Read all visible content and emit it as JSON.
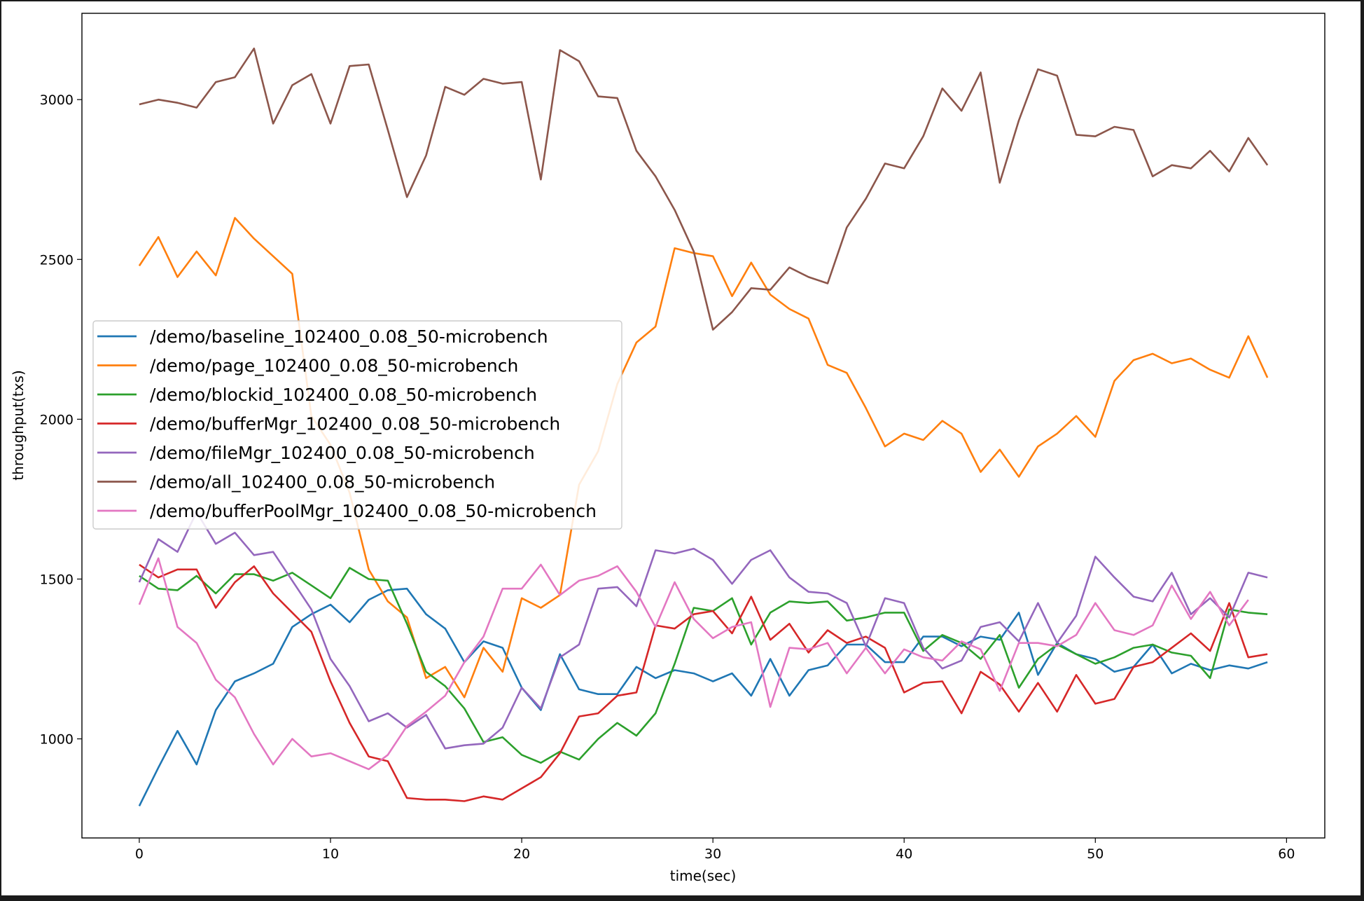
{
  "chart_data": {
    "type": "line",
    "xlabel": "time(sec)",
    "ylabel": "throughput(txs)",
    "xlim": [
      -3,
      62
    ],
    "ylim": [
      690,
      3270
    ],
    "xticks": [
      0,
      10,
      20,
      30,
      40,
      50,
      60
    ],
    "yticks": [
      1000,
      1500,
      2000,
      2500,
      3000
    ],
    "grid": false,
    "legend_position": "center-left",
    "x": [
      0,
      1,
      2,
      3,
      4,
      5,
      6,
      7,
      8,
      9,
      10,
      11,
      12,
      13,
      14,
      15,
      16,
      17,
      18,
      19,
      20,
      21,
      22,
      23,
      24,
      25,
      26,
      27,
      28,
      29,
      30,
      31,
      32,
      33,
      34,
      35,
      36,
      37,
      38,
      39,
      40,
      41,
      42,
      43,
      44,
      45,
      46,
      47,
      48,
      49,
      50,
      51,
      52,
      53,
      54,
      55,
      56,
      57,
      58,
      59
    ],
    "series": [
      {
        "name": "/demo/baseline_102400_0.08_50-microbench",
        "color": "#1f77b4",
        "values": [
          790,
          910,
          1025,
          920,
          1090,
          1180,
          1205,
          1235,
          1350,
          1390,
          1420,
          1365,
          1435,
          1465,
          1470,
          1390,
          1345,
          1240,
          1305,
          1285,
          1160,
          1090,
          1265,
          1155,
          1140,
          1140,
          1225,
          1190,
          1215,
          1205,
          1180,
          1205,
          1135,
          1250,
          1135,
          1215,
          1230,
          1295,
          1295,
          1240,
          1240,
          1320,
          1320,
          1290,
          1320,
          1310,
          1395,
          1200,
          1300,
          1265,
          1250,
          1210,
          1225,
          1295,
          1205,
          1235,
          1215,
          1230,
          1220,
          1240
        ]
      },
      {
        "name": "/demo/page_102400_0.08_50-microbench",
        "color": "#ff7f0e",
        "values": [
          2480,
          2570,
          2445,
          2525,
          2450,
          2630,
          2565,
          2510,
          2455,
          2010,
          1920,
          1770,
          1530,
          1430,
          1380,
          1190,
          1225,
          1130,
          1285,
          1210,
          1440,
          1410,
          1450,
          1795,
          1900,
          2110,
          2240,
          2290,
          2535,
          2520,
          2510,
          2385,
          2490,
          2390,
          2345,
          2315,
          2170,
          2145,
          2035,
          1915,
          1955,
          1935,
          1995,
          1955,
          1835,
          1905,
          1820,
          1915,
          1955,
          2010,
          1945,
          2120,
          2185,
          2205,
          2175,
          2190,
          2155,
          2130,
          2260,
          2130
        ]
      },
      {
        "name": "/demo/blockid_102400_0.08_50-microbench",
        "color": "#2ca02c",
        "values": [
          1510,
          1470,
          1465,
          1510,
          1455,
          1515,
          1515,
          1495,
          1520,
          1480,
          1440,
          1535,
          1500,
          1495,
          1360,
          1210,
          1165,
          1095,
          990,
          1005,
          950,
          925,
          960,
          935,
          1000,
          1050,
          1010,
          1080,
          1235,
          1410,
          1400,
          1440,
          1295,
          1395,
          1430,
          1425,
          1430,
          1370,
          1380,
          1395,
          1395,
          1275,
          1325,
          1300,
          1250,
          1325,
          1160,
          1250,
          1295,
          1265,
          1235,
          1255,
          1285,
          1295,
          1270,
          1260,
          1190,
          1405,
          1395,
          1390
        ]
      },
      {
        "name": "/demo/bufferMgr_102400_0.08_50-microbench",
        "color": "#d62728",
        "values": [
          1545,
          1505,
          1530,
          1530,
          1410,
          1490,
          1540,
          1455,
          1395,
          1335,
          1180,
          1050,
          945,
          930,
          815,
          810,
          810,
          805,
          820,
          810,
          845,
          880,
          955,
          1070,
          1080,
          1135,
          1145,
          1355,
          1345,
          1390,
          1400,
          1330,
          1445,
          1310,
          1360,
          1270,
          1340,
          1300,
          1320,
          1285,
          1145,
          1175,
          1180,
          1080,
          1210,
          1170,
          1085,
          1175,
          1085,
          1200,
          1110,
          1125,
          1225,
          1240,
          1285,
          1330,
          1275,
          1425,
          1255,
          1265
        ]
      },
      {
        "name": "/demo/fileMgr_102400_0.08_50-microbench",
        "color": "#9467bd",
        "values": [
          1490,
          1625,
          1585,
          1710,
          1610,
          1645,
          1575,
          1585,
          1495,
          1405,
          1250,
          1165,
          1055,
          1080,
          1035,
          1075,
          970,
          980,
          985,
          1035,
          1160,
          1095,
          1255,
          1295,
          1470,
          1475,
          1415,
          1590,
          1580,
          1595,
          1560,
          1485,
          1560,
          1590,
          1505,
          1460,
          1455,
          1425,
          1290,
          1440,
          1425,
          1285,
          1220,
          1245,
          1350,
          1365,
          1305,
          1425,
          1300,
          1385,
          1570,
          1505,
          1445,
          1430,
          1520,
          1390,
          1440,
          1380,
          1520,
          1505
        ]
      },
      {
        "name": "/demo/all_102400_0.08_50-microbench",
        "color": "#8c564b",
        "values": [
          2985,
          3000,
          2990,
          2975,
          3055,
          3070,
          3160,
          2925,
          3045,
          3080,
          2925,
          3105,
          3110,
          2905,
          2695,
          2825,
          3040,
          3015,
          3065,
          3050,
          3055,
          2750,
          3155,
          3120,
          3010,
          3005,
          2840,
          2760,
          2655,
          2525,
          2280,
          2335,
          2410,
          2405,
          2475,
          2445,
          2425,
          2600,
          2690,
          2800,
          2785,
          2885,
          3035,
          2965,
          3085,
          2740,
          2935,
          3095,
          3075,
          2890,
          2885,
          2915,
          2905,
          2760,
          2795,
          2785,
          2840,
          2775,
          2880,
          2795
        ]
      },
      {
        "name": "/demo/bufferPoolMgr_102400_0.08_50-microbench",
        "color": "#e377c2",
        "values": [
          1420,
          1565,
          1350,
          1300,
          1185,
          1130,
          1015,
          920,
          1000,
          945,
          955,
          930,
          905,
          950,
          1040,
          1085,
          1135,
          1240,
          1320,
          1470,
          1470,
          1545,
          1450,
          1495,
          1510,
          1540,
          1460,
          1350,
          1490,
          1375,
          1315,
          1350,
          1365,
          1100,
          1285,
          1280,
          1300,
          1205,
          1285,
          1205,
          1280,
          1255,
          1245,
          1305,
          1280,
          1150,
          1300,
          1300,
          1290,
          1325,
          1425,
          1340,
          1325,
          1355,
          1480,
          1375,
          1460,
          1355,
          1435,
          null
        ]
      }
    ]
  }
}
